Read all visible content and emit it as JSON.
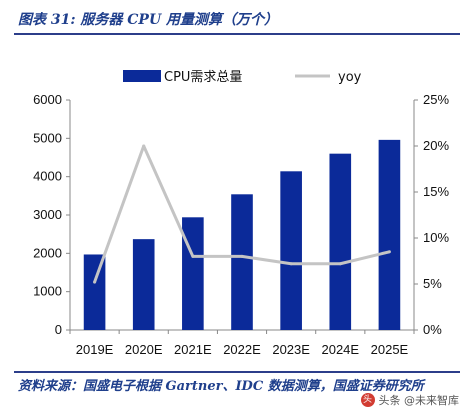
{
  "figure": {
    "title": "图表 31: 服务器 CPU 用量测算（万个）",
    "source": "资料来源：国盛电子根据 Gartner、IDC 数据测算，国盛证券研究所",
    "watermark": "头条 @未来智库"
  },
  "colors": {
    "bar": "#0b2a99",
    "line": "#c4c4c4",
    "rule": "#2c3e8a",
    "title": "#1f3f8c"
  },
  "chart_data": {
    "type": "bar",
    "categories": [
      "2019E",
      "2020E",
      "2021E",
      "2022E",
      "2023E",
      "2024E",
      "2025E"
    ],
    "series": [
      {
        "name": "CPU需求总量",
        "type": "bar",
        "axis": "left",
        "values": [
          1970,
          2370,
          2940,
          3540,
          4140,
          4600,
          4960
        ]
      },
      {
        "name": "yoy",
        "type": "line",
        "axis": "right",
        "values": [
          5.2,
          20.0,
          8.0,
          8.0,
          7.2,
          7.2,
          8.5
        ]
      }
    ],
    "y_left": {
      "lim": [
        0,
        6000
      ],
      "ticks": [
        "0",
        "1000",
        "2000",
        "3000",
        "4000",
        "5000",
        "6000"
      ]
    },
    "y_right": {
      "lim": [
        0,
        25
      ],
      "ticks": [
        "0%",
        "5%",
        "10%",
        "15%",
        "20%",
        "25%"
      ]
    },
    "legend": "top",
    "grid": false
  }
}
